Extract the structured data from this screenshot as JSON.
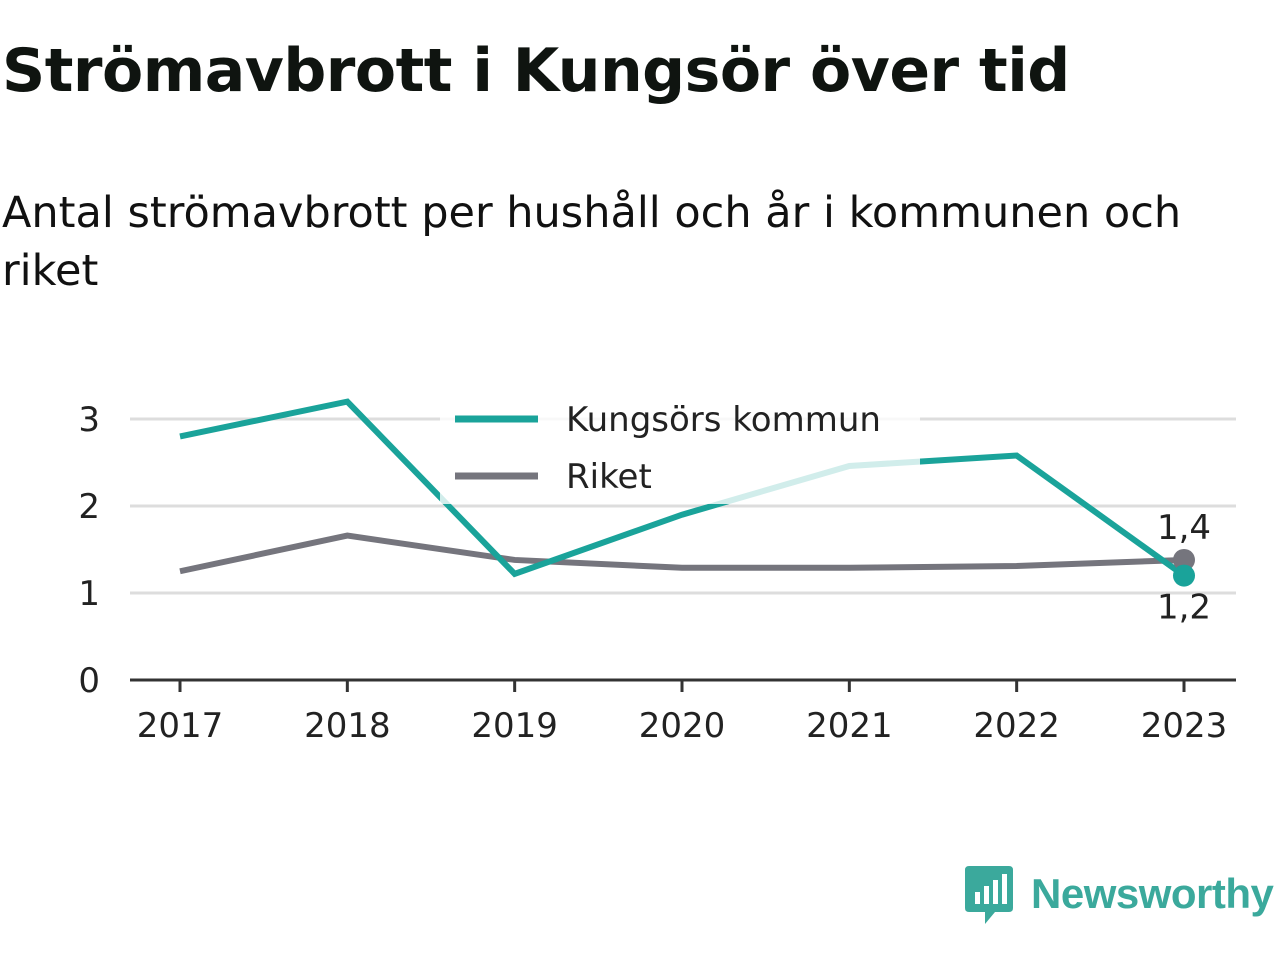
{
  "header": {
    "title": "Strömavbrott i Kungsör över tid",
    "subtitle": "Antal strömavbrott per hushåll och år i kommunen och riket"
  },
  "chart_data": {
    "type": "line",
    "x": [
      "2017",
      "2018",
      "2019",
      "2020",
      "2021",
      "2022",
      "2023"
    ],
    "ylim": [
      0,
      3.3
    ],
    "y_ticks": [
      "0",
      "1",
      "2",
      "3"
    ],
    "y_tick_values": [
      0,
      1,
      2,
      3
    ],
    "grid": true,
    "legend_position": "top-center",
    "series": [
      {
        "name": "Kungsörs kommun",
        "color": "#1aa39a",
        "values": [
          2.8,
          3.2,
          1.22,
          1.9,
          2.46,
          2.58,
          1.2
        ],
        "end_label": "1,2"
      },
      {
        "name": "Riket",
        "color": "#75757d",
        "values": [
          1.25,
          1.66,
          1.38,
          1.29,
          1.29,
          1.31,
          1.38
        ],
        "end_label": "1,4"
      }
    ]
  },
  "brand": {
    "name": "Newsworthy",
    "color": "#3ba99c",
    "icon": "newsworthy-logo-icon"
  }
}
